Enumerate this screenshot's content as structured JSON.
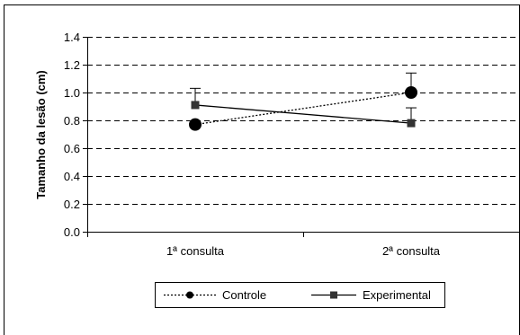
{
  "chart_data": {
    "type": "line",
    "categories": [
      "1ª consulta",
      "2ª consulta"
    ],
    "ylabel": "Tamanho da lesão (cm)",
    "xlabel": "",
    "ylim": [
      0,
      1.4
    ],
    "yticks": [
      "0.0",
      "0.2",
      "0.4",
      "0.6",
      "0.8",
      "1.0",
      "1.2",
      "1.4"
    ],
    "grid": true,
    "legend_position": "bottom",
    "series": [
      {
        "name": "Controle",
        "values": [
          0.77,
          1.0
        ],
        "error_upper": [
          null,
          1.14
        ],
        "color": "#000000",
        "marker": "circle",
        "line_style": "dotted"
      },
      {
        "name": "Experimental",
        "values": [
          0.91,
          0.78
        ],
        "error_upper": [
          1.03,
          0.89
        ],
        "color": "#000000",
        "marker_color": "#333333",
        "marker": "square",
        "line_style": "solid"
      }
    ]
  }
}
